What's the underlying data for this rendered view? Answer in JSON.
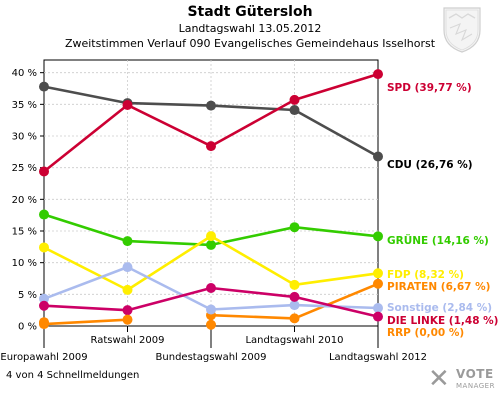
{
  "header": {
    "title": "Stadt Gütersloh",
    "subtitle": "Landtagswahl 13.05.2012",
    "subtitle2": "Zweitstimmen Verlauf 090 Evangelisches Gemeindehaus Isselhorst"
  },
  "footer": {
    "text": "4 von 4 Schnellmeldungen"
  },
  "logo": {
    "line1": "VOTE",
    "line2": "MANAGER",
    "mark": "✕"
  },
  "chart_data": {
    "type": "line",
    "title": "Stadt Gütersloh",
    "subtitle": "Zweitstimmen Verlauf 090 Evangelisches Gemeindehaus Isselhorst",
    "categories": [
      "Europawahl 2009",
      "Ratswahl 2009",
      "Bundestagswahl 2009",
      "Landtagswahl 2010",
      "Landtagswahl 2012"
    ],
    "ylim": [
      0,
      42
    ],
    "yticks": [
      0,
      5,
      10,
      15,
      20,
      25,
      30,
      35,
      40
    ],
    "ytick_labels": [
      "0 %",
      "5 %",
      "10 %",
      "15 %",
      "20 %",
      "25 %",
      "30 %",
      "35 %",
      "40 %"
    ],
    "grid": true,
    "series": [
      {
        "name": "CDU",
        "label": "CDU (26,76 %)",
        "color": "#4d4d4d",
        "labelColor": "#000000",
        "values": [
          37.8,
          35.2,
          34.8,
          34.1,
          26.76
        ]
      },
      {
        "name": "SPD",
        "label": "SPD (39,77 %)",
        "color": "#cc0033",
        "labelColor": "#cc0033",
        "values": [
          24.4,
          34.9,
          28.4,
          35.7,
          39.77
        ]
      },
      {
        "name": "GRÜNE",
        "label": "GRÜNE (14,16 %)",
        "color": "#33cc00",
        "labelColor": "#33cc00",
        "values": [
          17.6,
          13.4,
          12.8,
          15.6,
          14.16
        ]
      },
      {
        "name": "FDP",
        "label": "FDP (8,32 %)",
        "color": "#ffee00",
        "labelColor": "#ffee00",
        "values": [
          12.4,
          5.7,
          14.2,
          6.5,
          8.32
        ]
      },
      {
        "name": "PIRATEN",
        "label": "PIRATEN (6,67 %)",
        "color": "#ff8800",
        "labelColor": "#ff8800",
        "values": [
          0.5,
          null,
          1.7,
          1.2,
          6.67
        ]
      },
      {
        "name": "Sonstige",
        "label": "Sonstige (2,84 %)",
        "color": "#aabbee",
        "labelColor": "#aabbee",
        "values": [
          4.3,
          9.3,
          2.6,
          3.3,
          2.84
        ]
      },
      {
        "name": "DIE LINKE",
        "label": "DIE LINKE (1,48 %)",
        "color": "#cc0066",
        "labelColor": "#cc0033",
        "values": [
          3.2,
          2.5,
          6.0,
          4.6,
          1.48
        ]
      },
      {
        "name": "RRP",
        "label": "RRP (0,00 %)",
        "color": "#ff8800",
        "labelColor": "#ff8800",
        "values": [
          0.6,
          null,
          0.2,
          null,
          null
        ]
      },
      {
        "name": "RRP-end",
        "label": "",
        "color": "#ff8800",
        "labelColor": "#ff8800",
        "values": [
          0.3,
          1.0,
          null,
          null,
          null
        ]
      }
    ]
  }
}
